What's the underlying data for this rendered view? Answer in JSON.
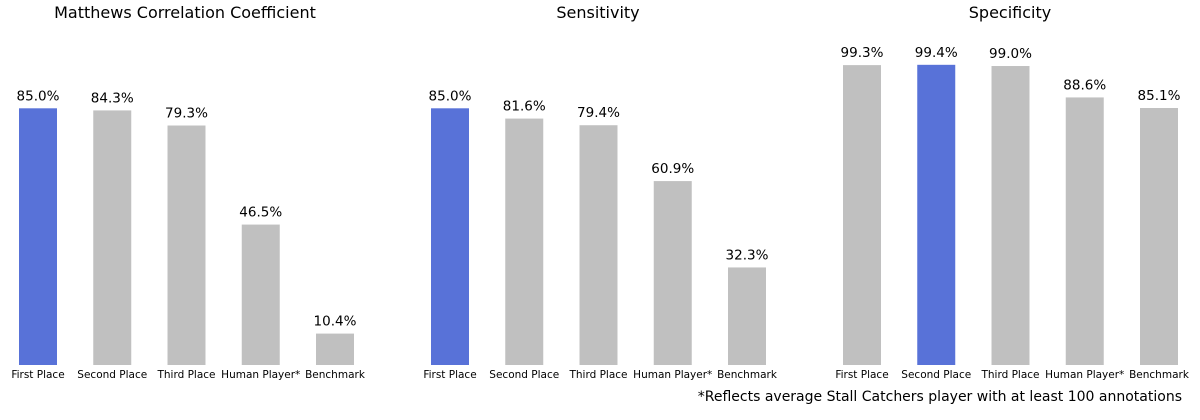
{
  "colors": {
    "highlight": "#5872d8",
    "default": "#c0c0c0"
  },
  "footnote": "*Reflects average Stall Catchers player with at least 100 annotations",
  "chart_data": [
    {
      "type": "bar",
      "title": "Matthews Correlation Coefficient",
      "categories": [
        "First Place",
        "Second Place",
        "Third Place",
        "Human Player*",
        "Benchmark"
      ],
      "values": [
        85.0,
        84.3,
        79.3,
        46.5,
        10.4
      ],
      "labels": [
        "85.0%",
        "84.3%",
        "79.3%",
        "46.5%",
        "10.4%"
      ],
      "highlight_index": 0,
      "ylim": [
        0,
        100
      ],
      "grid": false
    },
    {
      "type": "bar",
      "title": "Sensitivity",
      "categories": [
        "First Place",
        "Second Place",
        "Third Place",
        "Human Player*",
        "Benchmark"
      ],
      "values": [
        85.0,
        81.6,
        79.4,
        60.9,
        32.3
      ],
      "labels": [
        "85.0%",
        "81.6%",
        "79.4%",
        "60.9%",
        "32.3%"
      ],
      "highlight_index": 0,
      "ylim": [
        0,
        100
      ],
      "grid": false
    },
    {
      "type": "bar",
      "title": "Specificity",
      "categories": [
        "First Place",
        "Second Place",
        "Third Place",
        "Human Player*",
        "Benchmark"
      ],
      "values": [
        99.3,
        99.4,
        99.0,
        88.6,
        85.1
      ],
      "labels": [
        "99.3%",
        "99.4%",
        "99.0%",
        "88.6%",
        "85.1%"
      ],
      "highlight_index": 1,
      "ylim": [
        0,
        100
      ],
      "grid": false
    }
  ]
}
